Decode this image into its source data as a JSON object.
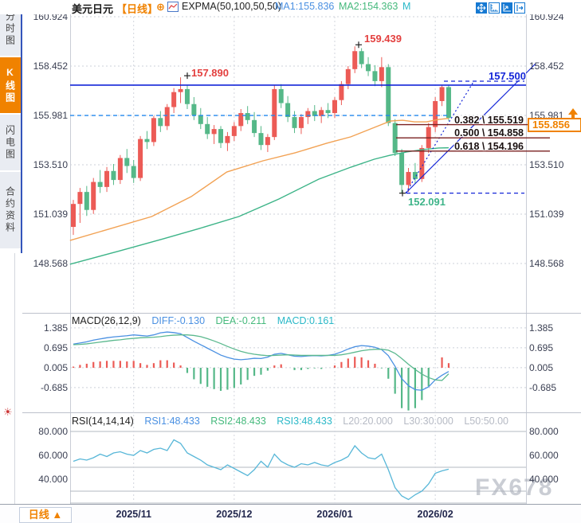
{
  "sidebar": {
    "tabs": [
      {
        "label": "分时图",
        "active": false
      },
      {
        "label": "K线图",
        "active": true
      },
      {
        "label": "闪电图",
        "active": false
      },
      {
        "label": "合约资料",
        "active": false
      }
    ],
    "sun_icon": "☀"
  },
  "header": {
    "symbol": "美元日元",
    "period_tag": "【日线】",
    "plus_icon": "⊕",
    "indicator": "EXPMA(50,100,50,50)",
    "ma1_label": "MA1:155.836",
    "ma2_label": "MA2:154.363",
    "m_label": "M",
    "toolbar_icons": [
      "pan-tool",
      "axis-scale",
      "chart-scale",
      "pop-out"
    ]
  },
  "main_chart": {
    "y_axis": [
      "160.924",
      "158.452",
      "155.981",
      "153.510",
      "151.039",
      "148.568"
    ],
    "annotations": {
      "peak1": "157.890",
      "peak2": "159.439",
      "low": "152.091",
      "resistance": "157.500"
    },
    "fib_levels": [
      {
        "label": "0.382 \\ 155.519",
        "price": 155.519
      },
      {
        "label": "0.500 \\ 154.858",
        "price": 154.858
      },
      {
        "label": "0.618 \\ 154.196",
        "price": 154.196
      }
    ],
    "current_price": "155.856"
  },
  "macd_panel": {
    "title": "MACD(26,12,9)",
    "diff_label": "DIFF:-0.130",
    "dea_label": "DEA:-0.211",
    "macd_label": "MACD:0.161",
    "y_axis": [
      "1.385",
      "0.695",
      "0.005",
      "-0.685"
    ]
  },
  "rsi_panel": {
    "title": "RSI(14,14,14)",
    "rsi1_label": "RSI1:48.433",
    "rsi2_label": "RSI2:48.433",
    "rsi3_label": "RSI3:48.433",
    "l20_label": "L20:20.000",
    "l30_label": "L30:30.000",
    "l50_label": "L50:50.00",
    "y_axis": [
      "80.000",
      "60.000",
      "40.000"
    ]
  },
  "bottom_bar": {
    "period_button": "日线",
    "period_arrow": "▲",
    "x_labels": [
      "2025/11",
      "2025/12",
      "2026/01",
      "2026/02"
    ]
  },
  "watermark": "FX678",
  "colors": {
    "up": "#ec5b56",
    "down": "#55b888",
    "ma1": "#f2a254",
    "ma2": "#3db488",
    "diff": "#4a90e2",
    "dea": "#5cb98f",
    "rsi": "#58b7d8",
    "accent_orange": "#f08200",
    "ref_blue": "#1426d8",
    "dash_blue": "#2288ee",
    "fib_line": "#7a2020"
  },
  "chart_data": [
    {
      "type": "candlestick",
      "title": "USDJPY daily",
      "x_axis_labels": [
        "2025/11",
        "2025/12",
        "2026/01",
        "2026/02"
      ],
      "y_ticks": [
        160.924,
        158.452,
        155.981,
        153.51,
        151.039,
        148.568
      ],
      "key_points": {
        "peak1": 157.89,
        "peak2": 159.439,
        "low": 152.091,
        "resistance": 157.5,
        "level": 155.981,
        "last_close": 155.856
      },
      "fib": [
        {
          "ratio": 0.382,
          "price": 155.519
        },
        {
          "ratio": 0.5,
          "price": 154.858
        },
        {
          "ratio": 0.618,
          "price": 154.196
        }
      ],
      "candles_ohlc": [
        [
          150.4,
          151.75,
          150.0,
          151.55
        ],
        [
          151.55,
          152.35,
          150.6,
          152.15
        ],
        [
          152.15,
          152.45,
          150.95,
          151.25
        ],
        [
          151.25,
          152.85,
          151.05,
          152.65
        ],
        [
          152.65,
          153.25,
          152.1,
          152.4
        ],
        [
          152.4,
          153.4,
          152.15,
          153.2
        ],
        [
          153.2,
          153.55,
          152.5,
          152.75
        ],
        [
          152.75,
          154.0,
          152.55,
          153.85
        ],
        [
          153.85,
          154.3,
          153.1,
          153.45
        ],
        [
          153.45,
          153.75,
          152.6,
          152.85
        ],
        [
          152.85,
          154.95,
          152.7,
          154.8
        ],
        [
          154.8,
          155.2,
          154.3,
          154.65
        ],
        [
          154.65,
          155.95,
          154.45,
          155.85
        ],
        [
          155.85,
          156.2,
          155.15,
          155.45
        ],
        [
          155.45,
          156.55,
          155.25,
          156.4
        ],
        [
          156.4,
          157.35,
          156.1,
          157.15
        ],
        [
          157.15,
          157.89,
          156.6,
          157.3
        ],
        [
          157.3,
          157.5,
          156.3,
          156.55
        ],
        [
          156.55,
          156.9,
          155.75,
          156.0
        ],
        [
          156.0,
          156.35,
          155.3,
          155.55
        ],
        [
          155.55,
          155.9,
          154.8,
          155.05
        ],
        [
          155.05,
          155.5,
          154.55,
          155.3
        ],
        [
          155.3,
          155.45,
          154.35,
          154.6
        ],
        [
          154.6,
          155.15,
          154.2,
          154.95
        ],
        [
          154.95,
          155.65,
          154.7,
          155.45
        ],
        [
          155.45,
          156.3,
          155.2,
          156.1
        ],
        [
          156.1,
          156.45,
          155.55,
          155.75
        ],
        [
          155.75,
          156.15,
          154.9,
          155.1
        ],
        [
          155.1,
          155.45,
          154.25,
          154.5
        ],
        [
          154.5,
          155.05,
          154.15,
          154.9
        ],
        [
          154.9,
          157.5,
          154.75,
          157.3
        ],
        [
          157.3,
          157.55,
          156.35,
          156.6
        ],
        [
          156.6,
          156.95,
          155.65,
          155.9
        ],
        [
          155.9,
          156.2,
          155.1,
          155.35
        ],
        [
          155.35,
          156.05,
          155.05,
          155.9
        ],
        [
          155.9,
          156.35,
          155.55,
          156.2
        ],
        [
          156.2,
          156.5,
          155.7,
          155.95
        ],
        [
          155.95,
          156.4,
          155.6,
          156.25
        ],
        [
          156.25,
          156.6,
          155.85,
          156.1
        ],
        [
          156.1,
          156.9,
          155.85,
          156.75
        ],
        [
          156.75,
          157.7,
          156.5,
          157.55
        ],
        [
          157.55,
          158.45,
          157.3,
          158.3
        ],
        [
          158.3,
          159.439,
          158.1,
          159.2
        ],
        [
          159.2,
          159.35,
          158.35,
          158.55
        ],
        [
          158.55,
          158.9,
          157.95,
          158.2
        ],
        [
          158.2,
          158.5,
          157.45,
          157.7
        ],
        [
          157.7,
          158.9,
          157.4,
          158.4
        ],
        [
          158.4,
          158.55,
          155.45,
          155.6
        ],
        [
          155.6,
          155.8,
          153.95,
          154.1
        ],
        [
          154.1,
          154.3,
          152.091,
          152.5
        ],
        [
          152.5,
          153.35,
          152.15,
          153.15
        ],
        [
          153.15,
          153.6,
          152.55,
          152.8
        ],
        [
          152.8,
          154.5,
          152.65,
          154.35
        ],
        [
          154.35,
          155.6,
          154.1,
          155.4
        ],
        [
          155.4,
          156.9,
          155.15,
          156.7
        ],
        [
          156.7,
          157.52,
          156.45,
          157.4
        ],
        [
          157.4,
          157.52,
          155.7,
          155.856
        ]
      ],
      "ma1_points": [
        [
          -0.5,
          149.72
        ],
        [
          11.7,
          150.92
        ],
        [
          17.6,
          151.92
        ],
        [
          22.9,
          153.15
        ],
        [
          28.3,
          153.71
        ],
        [
          33.1,
          154.11
        ],
        [
          37.8,
          154.59
        ],
        [
          41.4,
          154.91
        ],
        [
          44.9,
          155.38
        ],
        [
          47.3,
          155.7
        ],
        [
          49.1,
          155.74
        ],
        [
          50.9,
          155.66
        ],
        [
          52.7,
          155.66
        ],
        [
          54.5,
          155.78
        ],
        [
          56,
          155.836
        ]
      ],
      "ma2_points": [
        [
          -0.5,
          148.53
        ],
        [
          6.9,
          149.2
        ],
        [
          13.4,
          149.8
        ],
        [
          18.8,
          150.32
        ],
        [
          24.7,
          150.92
        ],
        [
          30.7,
          151.8
        ],
        [
          36.6,
          152.79
        ],
        [
          41.4,
          153.39
        ],
        [
          44.9,
          153.79
        ],
        [
          47.3,
          153.99
        ],
        [
          49.7,
          154.15
        ],
        [
          52.1,
          154.27
        ],
        [
          54.5,
          154.35
        ],
        [
          56,
          154.363
        ]
      ]
    },
    {
      "type": "macd",
      "params": [
        26,
        12,
        9
      ],
      "y_ticks": [
        1.385,
        0.695,
        0.005,
        -0.685
      ],
      "diff": [
        0.82,
        0.86,
        0.9,
        0.96,
        1.0,
        1.04,
        1.07,
        1.09,
        1.11,
        1.14,
        1.12,
        1.1,
        1.14,
        1.21,
        1.24,
        1.22,
        1.18,
        1.05,
        0.92,
        0.8,
        0.68,
        0.56,
        0.44,
        0.36,
        0.3,
        0.28,
        0.3,
        0.33,
        0.32,
        0.37,
        0.47,
        0.5,
        0.45,
        0.4,
        0.39,
        0.41,
        0.42,
        0.41,
        0.43,
        0.47,
        0.55,
        0.65,
        0.73,
        0.77,
        0.75,
        0.71,
        0.63,
        0.42,
        0.05,
        -0.38,
        -0.62,
        -0.76,
        -0.78,
        -0.66,
        -0.42,
        -0.26,
        -0.13
      ],
      "dea": [
        0.8,
        0.81,
        0.83,
        0.86,
        0.89,
        0.92,
        0.95,
        0.97,
        1.0,
        1.02,
        1.04,
        1.05,
        1.06,
        1.08,
        1.11,
        1.13,
        1.14,
        1.14,
        1.12,
        1.08,
        1.01,
        0.93,
        0.84,
        0.74,
        0.65,
        0.57,
        0.51,
        0.47,
        0.44,
        0.42,
        0.43,
        0.44,
        0.45,
        0.44,
        0.43,
        0.43,
        0.43,
        0.43,
        0.43,
        0.43,
        0.45,
        0.49,
        0.54,
        0.59,
        0.62,
        0.64,
        0.64,
        0.61,
        0.5,
        0.32,
        0.12,
        -0.06,
        -0.22,
        -0.34,
        -0.42,
        -0.44,
        -0.21
      ],
      "last": {
        "diff": -0.13,
        "dea": -0.211,
        "macd": 0.161
      }
    },
    {
      "type": "rsi",
      "params": [
        14,
        14,
        14
      ],
      "y_ticks": [
        80,
        60,
        40
      ],
      "ref_lines": [
        80,
        50,
        30,
        20
      ],
      "values": [
        55,
        57,
        56,
        58,
        61,
        59,
        62,
        63,
        61,
        60,
        64,
        62,
        65,
        66,
        64,
        73,
        70,
        62,
        59,
        56,
        52,
        50,
        48,
        52,
        49,
        46,
        43,
        48,
        55,
        50,
        61,
        55,
        52,
        50,
        53,
        52,
        54,
        52,
        51,
        54,
        56,
        59,
        68,
        62,
        58,
        57,
        61,
        48,
        33,
        26,
        23,
        27,
        30,
        36,
        45,
        47,
        48.4
      ],
      "last": {
        "rsi1": 48.433,
        "rsi2": 48.433,
        "rsi3": 48.433
      }
    }
  ]
}
